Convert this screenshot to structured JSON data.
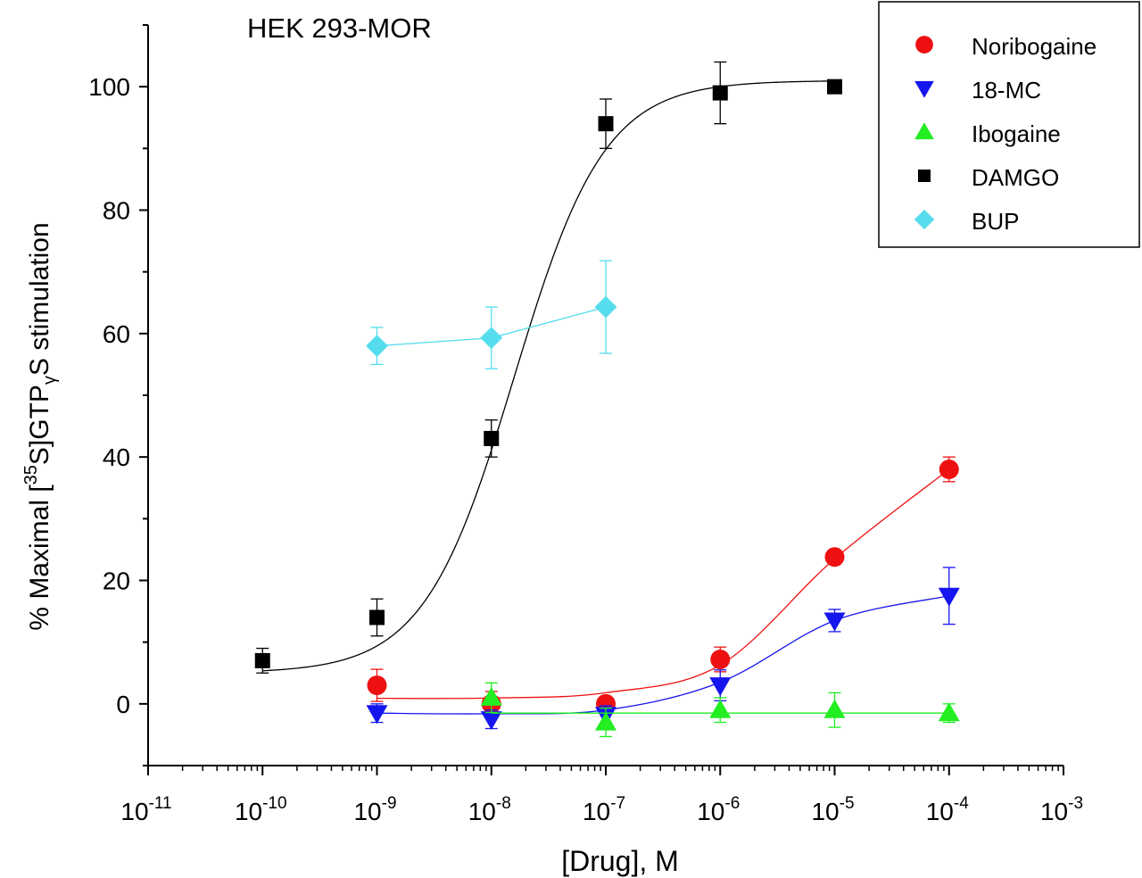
{
  "chart_data": {
    "type": "scatter",
    "title": "HEK 293-MOR",
    "xlabel": "[Drug], M",
    "ylabel": {
      "prefix": "% Maximal [",
      "sup": "35",
      "mid": "S]GTP",
      "sub": "γ",
      "suffix": "S stimulation"
    },
    "x_scale": "log",
    "xlim": [
      1e-11,
      0.001
    ],
    "ylim": [
      -10,
      110
    ],
    "x_ticks": [
      {
        "value": 1e-11,
        "base": "10",
        "exp": "-11"
      },
      {
        "value": 1e-10,
        "base": "10",
        "exp": "-10"
      },
      {
        "value": 1e-09,
        "base": "10",
        "exp": "-9"
      },
      {
        "value": 1e-08,
        "base": "10",
        "exp": "-8"
      },
      {
        "value": 1e-07,
        "base": "10",
        "exp": "-7"
      },
      {
        "value": 1e-06,
        "base": "10",
        "exp": "-6"
      },
      {
        "value": 1e-05,
        "base": "10",
        "exp": "-5"
      },
      {
        "value": 0.0001,
        "base": "10",
        "exp": "-4"
      },
      {
        "value": 0.001,
        "base": "10",
        "exp": "-3"
      }
    ],
    "y_ticks": [
      0,
      20,
      40,
      60,
      80,
      100
    ],
    "legend_position": "top-right",
    "grid": false,
    "series": [
      {
        "name": "Noribogaine",
        "color": "#ee1111",
        "marker": "circle",
        "x": [
          1e-09,
          1e-08,
          1e-07,
          1e-06,
          1e-05,
          0.0001
        ],
        "y": [
          3,
          0,
          0,
          7.2,
          23.8,
          38
        ],
        "err": [
          2.6,
          2,
          1.2,
          2.0,
          1,
          2
        ],
        "fit": [
          0.9,
          0.95,
          1.8,
          6.3,
          23.5,
          38
        ],
        "fit_style": "curve"
      },
      {
        "name": "18-MC",
        "color": "#1515ee",
        "marker": "triangle-down",
        "x": [
          1e-09,
          1e-08,
          1e-07,
          1e-06,
          1e-05,
          0.0001
        ],
        "y": [
          -1.5,
          -2.5,
          -1.8,
          3,
          13.5,
          17.5
        ],
        "err": [
          1.5,
          1.5,
          1.5,
          2.5,
          1.8,
          4.6
        ],
        "fit": [
          -1.5,
          -1.6,
          -1.0,
          3.5,
          13.5,
          17.5
        ],
        "fit_style": "curve"
      },
      {
        "name": "Ibogaine",
        "color": "#22ee22",
        "marker": "triangle-up",
        "x": [
          1e-08,
          1e-07,
          1e-06,
          1e-05,
          0.0001
        ],
        "y": [
          1,
          -3,
          -1,
          -1,
          -1.5
        ],
        "err": [
          2.4,
          2.3,
          2.0,
          2.8,
          1.5
        ],
        "fit": [
          -1.5,
          -1.5,
          -1.5,
          -1.5,
          -1.5
        ],
        "fit_style": "flat"
      },
      {
        "name": "DAMGO",
        "color": "#000000",
        "marker": "square",
        "x": [
          1e-10,
          1e-09,
          1e-08,
          1e-07,
          1e-06,
          1e-05
        ],
        "y": [
          7,
          14,
          43,
          94,
          99,
          100
        ],
        "err": [
          2,
          3,
          3,
          4,
          5,
          0
        ],
        "fit": {
          "bottom": 5,
          "top": 101,
          "logEC50": -7.8,
          "hill": 1.1
        },
        "fit_style": "sigmoid"
      },
      {
        "name": "BUP",
        "color": "#55ddee",
        "marker": "diamond",
        "x": [
          1e-09,
          1e-08,
          1e-07
        ],
        "y": [
          58,
          59.3,
          64.3
        ],
        "err": [
          3,
          5,
          7.5
        ],
        "fit": [
          58,
          59.3,
          64.3
        ],
        "fit_style": "polyline"
      }
    ]
  }
}
